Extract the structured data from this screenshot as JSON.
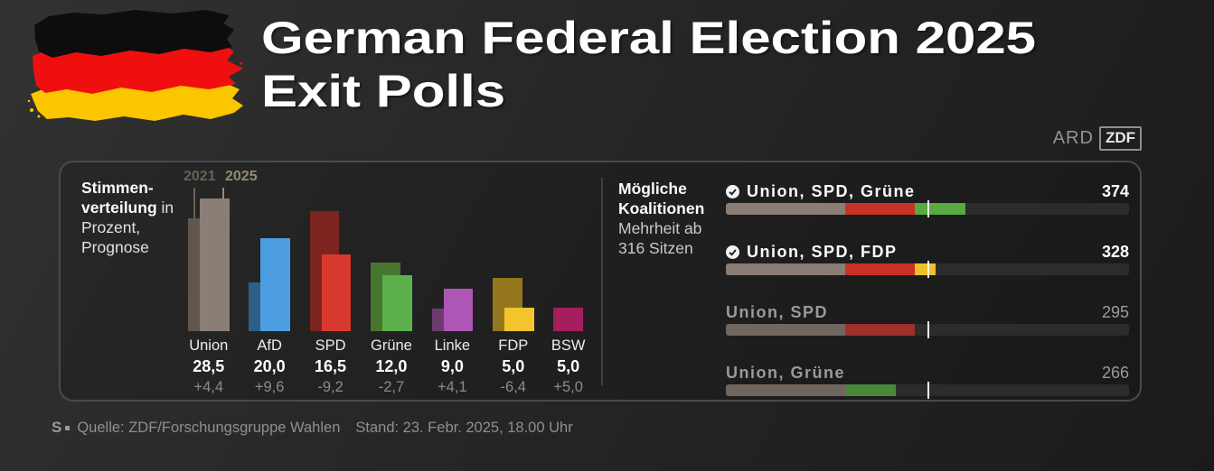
{
  "header": {
    "title_line1": "German Federal Election 2025",
    "title_line2": "Exit Polls",
    "broadcaster_left": "ARD",
    "broadcaster_right": "ZDF"
  },
  "chart_data": {
    "type": "bar",
    "caption_lines": [
      {
        "bold": "Stimmen-",
        "rest": ""
      },
      {
        "bold": "verteilung",
        "rest": " in"
      },
      {
        "bold": "",
        "rest": "Prozent,"
      },
      {
        "bold": "",
        "rest": "Prognose"
      }
    ],
    "legend": {
      "year_prev": "2021",
      "year_curr": "2025"
    },
    "categories": [
      "Union",
      "AfD",
      "SPD",
      "Grüne",
      "Linke",
      "FDP",
      "BSW"
    ],
    "series": [
      {
        "name": "2021",
        "values": [
          24.1,
          10.4,
          25.7,
          14.7,
          4.9,
          11.4,
          null
        ]
      },
      {
        "name": "2025",
        "values": [
          28.5,
          20.0,
          16.5,
          12.0,
          9.0,
          5.0,
          5.0
        ]
      }
    ],
    "value_labels": [
      "28,5",
      "20,0",
      "16,5",
      "12,0",
      "9,0",
      "5,0",
      "5,0"
    ],
    "change_labels": [
      "+4,4",
      "+9,6",
      "-9,2",
      "-2,7",
      "+4,1",
      "-6,4",
      "+5,0"
    ],
    "colors_2025": [
      "#8b7e76",
      "#4d9de2",
      "#d8392e",
      "#5cb04b",
      "#ad56b5",
      "#f2c52f",
      "#a51e60"
    ],
    "colors_2021": [
      "#60564e",
      "#2e5f85",
      "#7c2420",
      "#47762f",
      "#6d3a70",
      "#94771d",
      null
    ],
    "legend_color_prev": "#6a6055",
    "legend_color_curr": "#95897c",
    "ylim": [
      0,
      30
    ]
  },
  "coalitions": {
    "heading_bold1": "Mögliche",
    "heading_bold2": "Koalitionen",
    "heading_sub1": "Mehrheit ab",
    "heading_sub2": "316 Sitzen",
    "total_seats": 630,
    "majority_seats": 316,
    "party_seats": {
      "union": 187,
      "spd": 108,
      "gruene": 79,
      "fdp": 33
    },
    "party_colors": {
      "union": "#8a7d75",
      "spd": "#c93227",
      "gruene": "#57ab40",
      "fdp": "#eec02c"
    },
    "rows": [
      {
        "label": "Union, SPD, Grüne",
        "seats": "374",
        "majority": true,
        "parties": [
          "union",
          "spd",
          "gruene"
        ]
      },
      {
        "label": "Union, SPD, FDP",
        "seats": "328",
        "majority": true,
        "parties": [
          "union",
          "spd",
          "fdp"
        ]
      },
      {
        "label": "Union, SPD",
        "seats": "295",
        "majority": false,
        "parties": [
          "union",
          "spd"
        ]
      },
      {
        "label": "Union, Grüne",
        "seats": "266",
        "majority": false,
        "parties": [
          "union",
          "gruene"
        ]
      }
    ]
  },
  "footer": {
    "source_mark": "S",
    "source": "Quelle: ZDF/Forschungsgruppe Wahlen",
    "stand": "Stand: 23. Febr. 2025, 18.00 Uhr"
  }
}
